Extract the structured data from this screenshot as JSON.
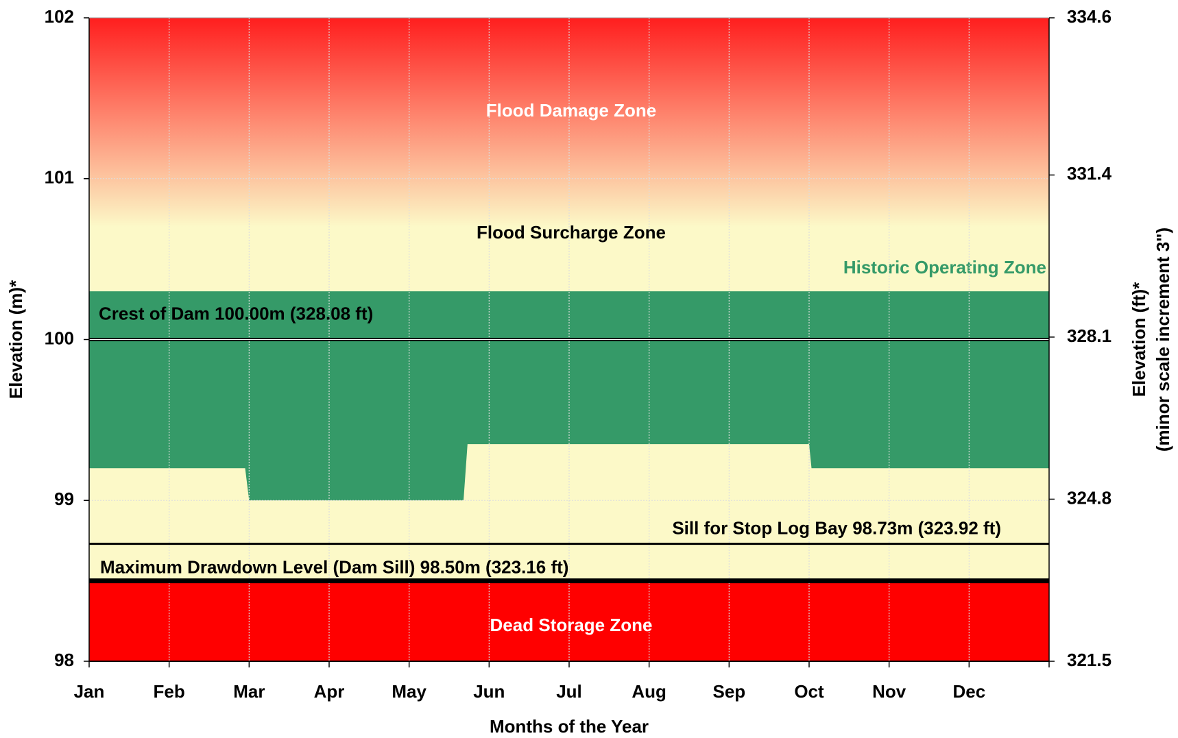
{
  "chart_data": {
    "type": "area",
    "x_label": "Months of the Year",
    "y_label": "Elevation (m)*",
    "y2_label": [
      "Elevation (ft)*",
      "(minor scale increment 3\")"
    ],
    "categories": [
      "Jan",
      "Feb",
      "Mar",
      "Apr",
      "May",
      "Jun",
      "Jul",
      "Aug",
      "Sep",
      "Oct",
      "Nov",
      "Dec"
    ],
    "xlim": [
      0,
      12
    ],
    "ylim": [
      98,
      102
    ],
    "yticks": [
      98,
      99,
      100,
      101,
      102
    ],
    "y2lim": [
      321.5,
      334.6
    ],
    "y2ticks": [
      321.5,
      324.8,
      328.1,
      331.4,
      334.6
    ],
    "grid": true,
    "background": "#fcf9c8",
    "zones": [
      {
        "name": "Flood Damage Zone",
        "range": [
          100.7,
          102
        ],
        "color": "#ff1e1e",
        "label_color": "#ffffff",
        "gradient": true
      },
      {
        "name": "Flood Surcharge Zone",
        "range": [
          100.3,
          100.7
        ],
        "color": "#fcf9c8",
        "label_color": "#000000",
        "gradient": false
      },
      {
        "name": "Dead Storage Zone",
        "range": [
          98,
          98.5
        ],
        "color": "#ff0000",
        "label_color": "#ffffff",
        "gradient": false
      }
    ],
    "series": [
      {
        "name": "Historic Operating Zone",
        "color": "#359a68",
        "x": [
          0,
          1.95,
          2.0,
          4.68,
          4.73,
          9.0,
          9.03,
          12
        ],
        "upper": [
          100.3,
          100.3,
          100.3,
          100.3,
          100.3,
          100.3,
          100.3,
          100.3
        ],
        "lower": [
          99.2,
          99.2,
          99.0,
          99.0,
          99.35,
          99.35,
          99.2,
          99.2
        ]
      }
    ],
    "reference_lines": [
      {
        "label": "Crest of Dam 100.00m (328.08 ft)",
        "value": 100.0,
        "width": 5
      },
      {
        "label": "Sill for Stop Log Bay 98.73m (323.92 ft)",
        "value": 98.73,
        "width": 3
      },
      {
        "label": "Maximum Drawdown Level (Dam Sill) 98.50m (323.16 ft)",
        "value": 98.5,
        "width": 7
      }
    ]
  }
}
